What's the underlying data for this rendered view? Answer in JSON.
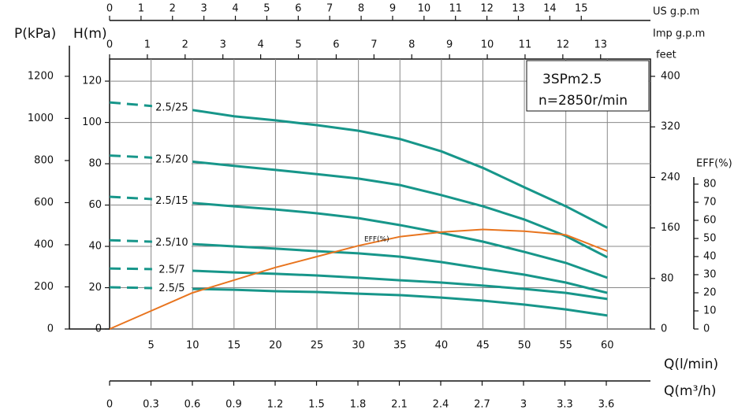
{
  "chart_data": {
    "type": "line",
    "model": "3SPm2.5",
    "speed": "n=2850r/min",
    "xlabel": "Q(l/min)",
    "ylabel": "H(m)",
    "x": [
      0,
      5,
      10,
      15,
      20,
      25,
      30,
      35,
      40,
      45,
      50,
      55,
      60
    ],
    "xlim": [
      0,
      65.2
    ],
    "xticks": [
      5,
      10,
      15,
      20,
      25,
      30,
      35,
      40,
      45,
      50,
      55,
      60
    ],
    "ylim": [
      0,
      130.7
    ],
    "yticks": [
      0,
      20,
      40,
      60,
      80,
      100,
      120
    ],
    "grid": true,
    "series": [
      {
        "name": "2.5/25",
        "color": "#17968a",
        "values": [
          109.7,
          108,
          106,
          103,
          101,
          98.7,
          96,
          92,
          86,
          78,
          68.6,
          59.4,
          49
        ]
      },
      {
        "name": "2.5/20",
        "color": "#17968a",
        "values": [
          84,
          83,
          81,
          79,
          77,
          75,
          72.8,
          69.7,
          64.8,
          59.4,
          53,
          45,
          34.7
        ]
      },
      {
        "name": "2.5/15",
        "color": "#17968a",
        "values": [
          64,
          62.9,
          61,
          59.4,
          57.9,
          56,
          53.7,
          50.3,
          46.5,
          42.3,
          37.3,
          32,
          24.8
        ]
      },
      {
        "name": "2.5/10",
        "color": "#17968a",
        "values": [
          43,
          42.3,
          41.1,
          40,
          38.9,
          37.7,
          36.6,
          35,
          32.4,
          29.3,
          26.3,
          22.5,
          17.5
        ]
      },
      {
        "name": "2.5/7",
        "color": "#17968a",
        "values": [
          29.3,
          29,
          28.2,
          27.4,
          26.7,
          25.9,
          24.8,
          23.6,
          22.5,
          21,
          19.4,
          17.5,
          14.5
        ]
      },
      {
        "name": "2.5/5",
        "color": "#17968a",
        "values": [
          20.2,
          19.8,
          19.4,
          19,
          18.3,
          17.9,
          17.1,
          16.4,
          15.2,
          13.7,
          11.8,
          9.5,
          6.5
        ]
      },
      {
        "name": "EFF(%)",
        "axis": "eff",
        "color": "#e8741e",
        "values": [
          0,
          10,
          20,
          27,
          34,
          40,
          46,
          51,
          53.5,
          55,
          54,
          52,
          43
        ]
      }
    ],
    "axes": {
      "pressure": {
        "label": "P(kPa)",
        "lim": [
          0,
          1282
        ],
        "ticks": [
          0,
          200,
          400,
          600,
          800,
          1000,
          1200
        ]
      },
      "feet": {
        "label": "feet",
        "lim": [
          0,
          427.4
        ],
        "ticks": [
          0,
          80,
          160,
          240,
          320,
          400
        ]
      },
      "eff": {
        "label": "EFF(%)",
        "lim": [
          0,
          149.1
        ],
        "ticks": [
          0,
          10,
          20,
          30,
          40,
          50,
          60,
          70,
          80
        ]
      },
      "us_gpm": {
        "label": "US g.p.m",
        "lim": [
          0,
          17.2
        ],
        "ticks": [
          0,
          1,
          2,
          3,
          4,
          5,
          6,
          7,
          8,
          9,
          10,
          11,
          12,
          13,
          14,
          15
        ]
      },
      "imp_gpm": {
        "label": "Imp g.p.m",
        "lim": [
          0,
          14.32
        ],
        "ticks": [
          0,
          1,
          2,
          3,
          4,
          5,
          6,
          7,
          8,
          9,
          10,
          11,
          12,
          13
        ]
      },
      "m3h": {
        "label": "Q(m³/h)",
        "lim": [
          0,
          3.92
        ],
        "ticks": [
          0,
          0.3,
          0.6,
          0.9,
          1.2,
          1.5,
          1.8,
          2.1,
          2.4,
          2.7,
          3,
          3.3,
          3.6
        ]
      }
    }
  }
}
